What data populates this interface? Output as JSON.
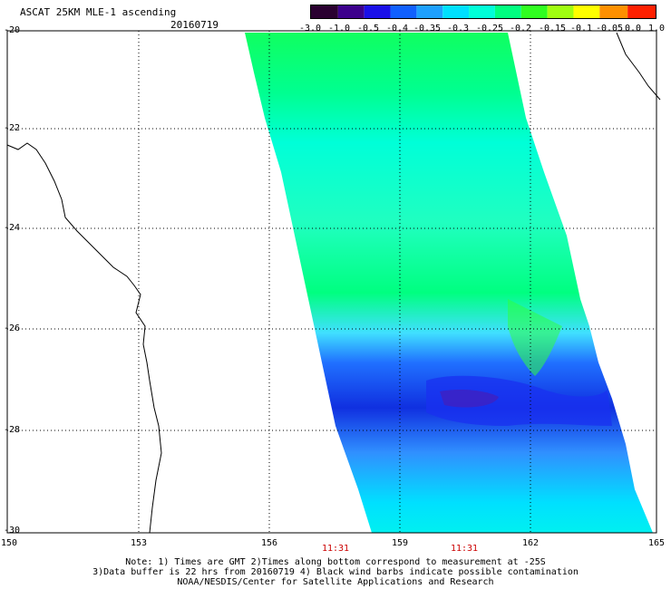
{
  "title": "ASCAT 25KM MLE-1 ascending",
  "date": "20160719",
  "colorbar": {
    "ticks": [
      "-3.0",
      "-1.0",
      "-0.5",
      "-0.4",
      "-0.35",
      "-0.3",
      "-0.25",
      "-0.2",
      "-0.15",
      "-0.1",
      "-0.05",
      "0.0",
      "1.0"
    ],
    "colors": [
      "#2a0030",
      "#3c008c",
      "#1a10e8",
      "#1060ff",
      "#1ea0ff",
      "#00e0ff",
      "#00ffd8",
      "#00ff80",
      "#30ff20",
      "#a0ff10",
      "#ffff00",
      "#ff9000",
      "#ff2000"
    ]
  },
  "map": {
    "lat_labels": [
      "-20",
      "-22",
      "-24",
      "-26",
      "-28",
      "-30"
    ],
    "lon_labels": [
      "150",
      "153",
      "156",
      "159",
      "162",
      "165"
    ],
    "times": [
      "11:31",
      "11:31"
    ]
  },
  "notes": [
    "Note: 1) Times are GMT 2)Times along bottom correspond to measurement at -25S",
    "3)Data buffer is 22 hrs from 20160719 4) Black wind barbs indicate possible contamination",
    "NOAA/NESDIS/Center for Satellite Applications and Research"
  ]
}
